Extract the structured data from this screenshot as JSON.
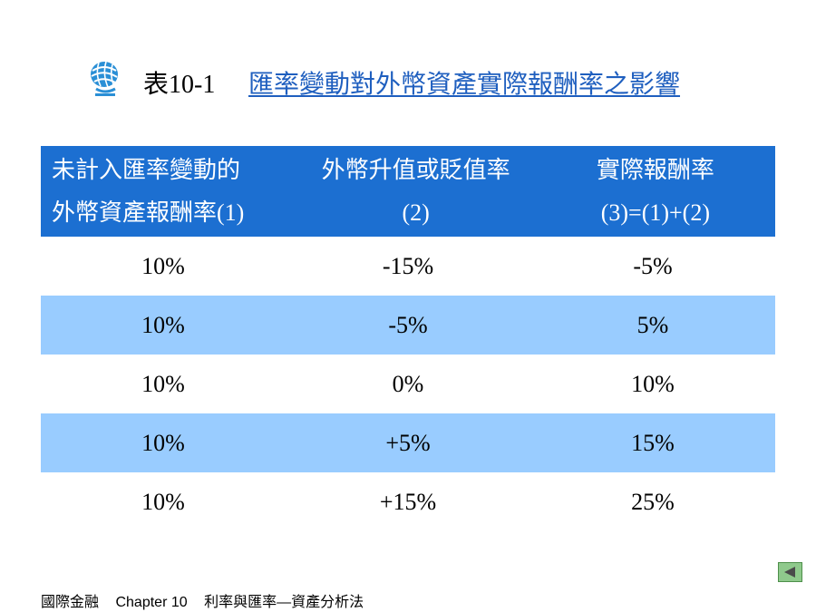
{
  "title": {
    "label": "表10-1",
    "text": "匯率變動對外幣資產實際報酬率之影響"
  },
  "table": {
    "headers": [
      {
        "line1": "未計入匯率變動的",
        "line2": "外幣資產報酬率(1)"
      },
      {
        "line1": "外幣升值或貶值率",
        "line2": "(2)"
      },
      {
        "line1": "實際報酬率",
        "line2": "(3)=(1)+(2)"
      }
    ],
    "rows": [
      [
        "10%",
        "-15%",
        "-5%"
      ],
      [
        "10%",
        "-5%",
        "5%"
      ],
      [
        "10%",
        "0%",
        "10%"
      ],
      [
        "10%",
        "+5%",
        "15%"
      ],
      [
        "10%",
        "+15%",
        "25%"
      ]
    ]
  },
  "footer": {
    "course": "國際金融",
    "chapter": "Chapter 10",
    "topic": "利率與匯率—資產分析法"
  },
  "icons": [
    "globe-logo-icon",
    "back-arrow-icon"
  ],
  "colors": {
    "header_bg": "#1c6fd1",
    "alt_row_bg": "#99ccff",
    "title_link": "#1f5fbf"
  }
}
